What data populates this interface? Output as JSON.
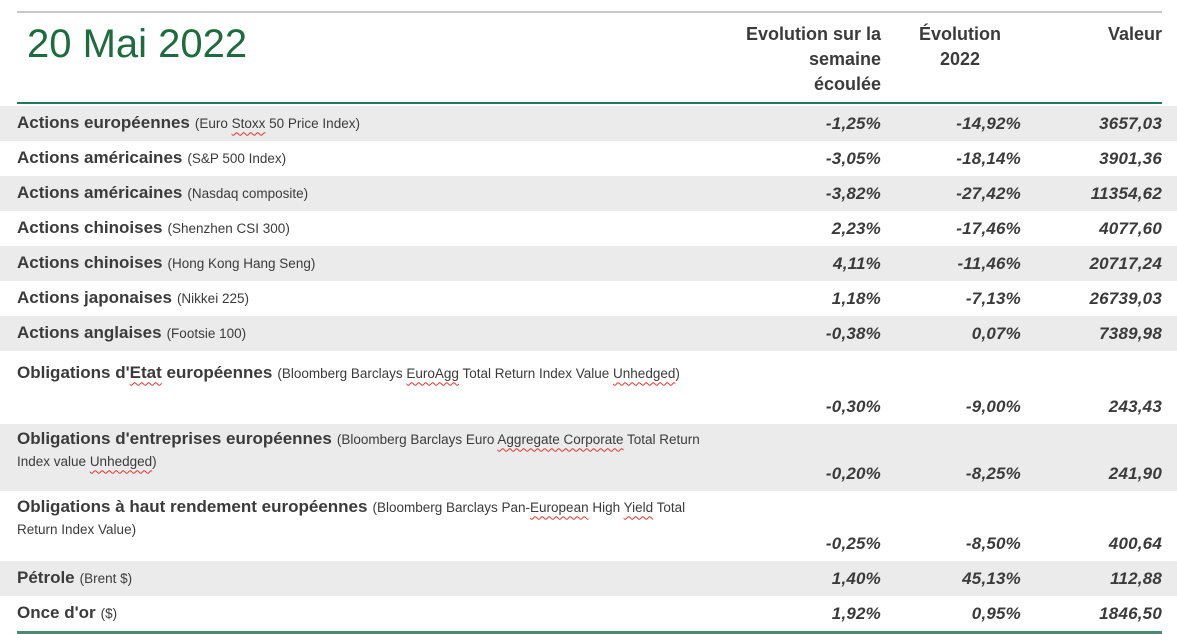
{
  "title": "20 Mai 2022",
  "columns": {
    "week": "Evolution sur la\nsemaine\nécoulée",
    "ytd": "Évolution\n2022",
    "value": "Valeur"
  },
  "colors": {
    "title_green": "#1e6b40",
    "header_rule_green": "#25775a",
    "bottom_rule_green": "#4a8a6f",
    "top_rule_gray": "#c9c9c9",
    "row_shade": "#ebebeb",
    "text": "#3b3b3b",
    "spellcheck_red": "#e0352b"
  },
  "rows": [
    {
      "label": [
        {
          "t": "Actions européennes"
        }
      ],
      "note": [
        {
          "t": "(Euro "
        },
        {
          "t": "Stoxx",
          "sq": true
        },
        {
          "t": " 50 Price Index)"
        }
      ],
      "week": "-1,25%",
      "ytd": "-14,92%",
      "value": "3657,03"
    },
    {
      "label": [
        {
          "t": "Actions américaines"
        }
      ],
      "note": [
        {
          "t": "(S&P 500 Index)"
        }
      ],
      "week": "-3,05%",
      "ytd": "-18,14%",
      "value": "3901,36"
    },
    {
      "label": [
        {
          "t": "Actions américaines"
        }
      ],
      "note": [
        {
          "t": "(Nasdaq composite)"
        }
      ],
      "week": "-3,82%",
      "ytd": "-27,42%",
      "value": "11354,62"
    },
    {
      "label": [
        {
          "t": "Actions chinoises"
        }
      ],
      "note": [
        {
          "t": "(Shenzhen CSI 300)"
        }
      ],
      "week": "2,23%",
      "ytd": "-17,46%",
      "value": "4077,60"
    },
    {
      "label": [
        {
          "t": "Actions chinoises"
        }
      ],
      "note": [
        {
          "t": "(Hong Kong Hang Seng)"
        }
      ],
      "week": "4,11%",
      "ytd": "-11,46%",
      "value": "20717,24"
    },
    {
      "label": [
        {
          "t": "Actions japonaises"
        }
      ],
      "note": [
        {
          "t": "(Nikkei 225)"
        }
      ],
      "week": "1,18%",
      "ytd": "-7,13%",
      "value": "26739,03"
    },
    {
      "label": [
        {
          "t": "Actions anglaises"
        }
      ],
      "note": [
        {
          "t": "(Footsie 100)"
        }
      ],
      "week": "-0,38%",
      "ytd": "0,07%",
      "value": "7389,98"
    },
    {
      "label": [
        {
          "t": "Obligations d'"
        },
        {
          "t": "Etat",
          "sq": true
        },
        {
          "t": " européennes"
        }
      ],
      "note": [
        {
          "t": "(Bloomberg Barclays "
        },
        {
          "t": "EuroAgg",
          "sq": true
        },
        {
          "t": " Total Return Index Value "
        },
        {
          "t": "Unhedged",
          "sq": true
        },
        {
          "t": ")"
        }
      ],
      "week": "-0,30%",
      "ytd": "-9,00%",
      "value": "243,43"
    },
    {
      "label": [
        {
          "t": "Obligations d'entreprises européennes"
        }
      ],
      "note": [
        {
          "t": "(Bloomberg Barclays Euro "
        },
        {
          "t": "Aggregate Corporate",
          "sq": true
        },
        {
          "t": " Total Return Index value "
        },
        {
          "t": "Unhedged",
          "sq": true
        },
        {
          "t": ")"
        }
      ],
      "week": "-0,20%",
      "ytd": "-8,25%",
      "value": "241,90"
    },
    {
      "label": [
        {
          "t": "Obligations à haut rendement européennes"
        }
      ],
      "note": [
        {
          "t": "(Bloomberg Barclays Pan-"
        },
        {
          "t": "European",
          "sq": true
        },
        {
          "t": " High "
        },
        {
          "t": "Yield",
          "sq": true
        },
        {
          "t": " Total Return Index Value)"
        }
      ],
      "week": "-0,25%",
      "ytd": "-8,50%",
      "value": "400,64"
    },
    {
      "label": [
        {
          "t": "Pétrole"
        }
      ],
      "note": [
        {
          "t": "(Brent $)"
        }
      ],
      "week": "1,40%",
      "ytd": "45,13%",
      "value": "112,88"
    },
    {
      "label": [
        {
          "t": "Once d'or"
        }
      ],
      "note": [
        {
          "t": "($)"
        }
      ],
      "week": "1,92%",
      "ytd": "0,95%",
      "value": "1846,50"
    }
  ]
}
